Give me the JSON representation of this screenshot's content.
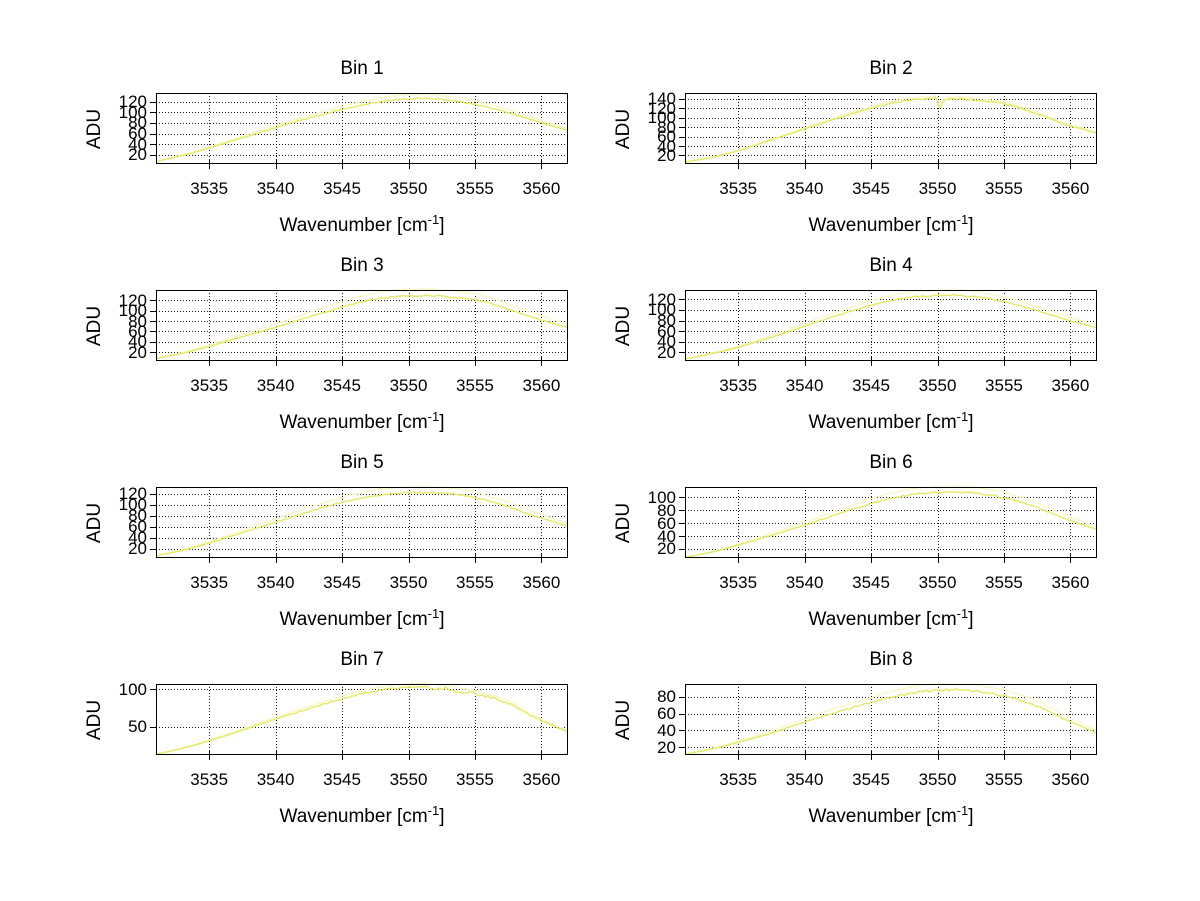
{
  "figure": {
    "background": "#ffffff",
    "text_color": "#000000"
  },
  "labels": {
    "ylabel": "ADU",
    "xlabel_base": "Wavenumber [cm",
    "xlabel_sup": "-1",
    "xlabel_close": "]"
  },
  "colors": {
    "curve": "#e4e95f",
    "ghost_curve": "#f6f8c6",
    "grid": "#1a1a1a",
    "axis": "#000000"
  },
  "chart_data": [
    {
      "type": "line",
      "title": "Bin 1",
      "xlabel": "Wavenumber [cm^-1]",
      "ylabel": "ADU",
      "grid": true,
      "xlim": [
        3531,
        3562
      ],
      "ylim": [
        3,
        136
      ],
      "xticks": [
        3535,
        3540,
        3545,
        3550,
        3555,
        3560
      ],
      "yticks": [
        20,
        40,
        60,
        80,
        100,
        120
      ],
      "x": [
        3531,
        3533,
        3535,
        3537.5,
        3540,
        3542.5,
        3545,
        3546.5,
        3548,
        3549.5,
        3551,
        3552.5,
        3554,
        3555.5,
        3557.5,
        3559.5,
        3562
      ],
      "y": [
        8,
        19,
        33,
        52,
        71,
        89,
        105,
        113,
        120,
        124,
        126,
        124,
        119,
        112,
        99,
        84,
        66
      ],
      "noise_amp": 1.3,
      "ghost_scale": 1.06
    },
    {
      "type": "line",
      "title": "Bin 2",
      "xlabel": "Wavenumber [cm^-1]",
      "ylabel": "ADU",
      "grid": true,
      "xlim": [
        3531,
        3562
      ],
      "ylim": [
        2,
        152
      ],
      "xticks": [
        3535,
        3540,
        3545,
        3550,
        3555,
        3560
      ],
      "yticks": [
        20,
        40,
        60,
        80,
        100,
        120,
        140
      ],
      "x": [
        3531,
        3533,
        3535,
        3537.5,
        3540,
        3542.5,
        3545,
        3546.5,
        3548,
        3549.4,
        3549.9,
        3550.15,
        3550.6,
        3551.5,
        3552.5,
        3554,
        3555.5,
        3557.5,
        3559.5,
        3562
      ],
      "y": [
        6,
        16,
        30,
        53,
        76,
        99,
        120,
        130,
        137,
        140,
        141,
        121,
        138,
        140,
        138,
        133,
        126,
        108,
        87,
        67
      ],
      "noise_amp": 1.5,
      "ghost_scale": 1.03
    },
    {
      "type": "line",
      "title": "Bin 3",
      "xlabel": "Wavenumber [cm^-1]",
      "ylabel": "ADU",
      "grid": true,
      "xlim": [
        3531,
        3562
      ],
      "ylim": [
        3,
        140
      ],
      "xticks": [
        3535,
        3540,
        3545,
        3550,
        3555,
        3560
      ],
      "yticks": [
        20,
        40,
        60,
        80,
        100,
        120
      ],
      "x": [
        3531,
        3533,
        3535,
        3537.5,
        3540,
        3542.5,
        3545,
        3546.5,
        3548,
        3549.5,
        3551,
        3552.5,
        3554,
        3555.5,
        3557.5,
        3559.5,
        3562
      ],
      "y": [
        8,
        18,
        31,
        50,
        68,
        88,
        107,
        117,
        124,
        128,
        129,
        128,
        124,
        119,
        103,
        86,
        67
      ],
      "noise_amp": 1.6,
      "ghost_scale": 1.1
    },
    {
      "type": "line",
      "title": "Bin 4",
      "xlabel": "Wavenumber [cm^-1]",
      "ylabel": "ADU",
      "grid": true,
      "xlim": [
        3531,
        3562
      ],
      "ylim": [
        3,
        138
      ],
      "xticks": [
        3535,
        3540,
        3545,
        3550,
        3555,
        3560
      ],
      "yticks": [
        20,
        40,
        60,
        80,
        100,
        120
      ],
      "x": [
        3531,
        3533,
        3535,
        3537.5,
        3540,
        3542.5,
        3545,
        3546.5,
        3548,
        3549.5,
        3551,
        3552.5,
        3554,
        3555.5,
        3557.5,
        3559.5,
        3562
      ],
      "y": [
        7,
        17,
        29,
        48,
        69,
        90,
        109,
        118,
        125,
        127,
        128,
        126,
        121,
        113,
        99,
        83,
        66
      ],
      "noise_amp": 1.4,
      "ghost_scale": 1.08
    },
    {
      "type": "line",
      "title": "Bin 5",
      "xlabel": "Wavenumber [cm^-1]",
      "ylabel": "ADU",
      "grid": true,
      "xlim": [
        3531,
        3562
      ],
      "ylim": [
        3,
        132
      ],
      "xticks": [
        3535,
        3540,
        3545,
        3550,
        3555,
        3560
      ],
      "yticks": [
        20,
        40,
        60,
        80,
        100,
        120
      ],
      "x": [
        3531,
        3533,
        3535,
        3537.5,
        3540,
        3542.5,
        3545,
        3546.5,
        3548,
        3549.5,
        3551,
        3552.5,
        3554,
        3555.5,
        3557.5,
        3559.5,
        3562
      ],
      "y": [
        7,
        17,
        30,
        49,
        68,
        87,
        104,
        112,
        118,
        121,
        122,
        121,
        117,
        110,
        96,
        79,
        61
      ],
      "noise_amp": 1.4,
      "ghost_scale": 1.09
    },
    {
      "type": "line",
      "title": "Bin 6",
      "xlabel": "Wavenumber [cm^-1]",
      "ylabel": "ADU",
      "grid": true,
      "xlim": [
        3531,
        3562
      ],
      "ylim": [
        6,
        116
      ],
      "xticks": [
        3535,
        3540,
        3545,
        3550,
        3555,
        3560
      ],
      "yticks": [
        20,
        40,
        60,
        80,
        100
      ],
      "x": [
        3531,
        3533,
        3535,
        3537.5,
        3540,
        3542.5,
        3545,
        3546.5,
        3548,
        3549.5,
        3551,
        3552.5,
        3554,
        3555.5,
        3557.5,
        3559.5,
        3562
      ],
      "y": [
        7,
        15,
        26,
        41,
        57,
        74,
        90,
        98,
        104,
        107,
        108,
        107,
        103,
        97,
        84,
        68,
        50
      ],
      "noise_amp": 1.5,
      "ghost_scale": 1.09
    },
    {
      "type": "line",
      "title": "Bin 7",
      "xlabel": "Wavenumber [cm^-1]",
      "ylabel": "ADU",
      "grid": true,
      "xlim": [
        3531,
        3562
      ],
      "ylim": [
        12,
        107
      ],
      "xticks": [
        3535,
        3540,
        3545,
        3550,
        3555,
        3560
      ],
      "yticks": [
        50,
        100
      ],
      "x": [
        3531,
        3533,
        3535,
        3537.5,
        3540,
        3542.5,
        3545,
        3546.5,
        3548,
        3549.5,
        3551,
        3552.5,
        3554,
        3555.5,
        3557.5,
        3559.5,
        3562
      ],
      "y": [
        13,
        21,
        31,
        45,
        60,
        74,
        87,
        94,
        99,
        102,
        103,
        101,
        97,
        92,
        81,
        62,
        43
      ],
      "noise_amp": 1.2,
      "noise_right": 2.6,
      "ghost_scale": 1.05
    },
    {
      "type": "line",
      "title": "Bin 8",
      "xlabel": "Wavenumber [cm^-1]",
      "ylabel": "ADU",
      "grid": true,
      "xlim": [
        3531,
        3562
      ],
      "ylim": [
        11,
        95
      ],
      "xticks": [
        3535,
        3540,
        3545,
        3550,
        3555,
        3560
      ],
      "yticks": [
        20,
        40,
        60,
        80
      ],
      "x": [
        3531,
        3533,
        3535,
        3537.5,
        3540,
        3542.5,
        3545,
        3546.5,
        3548,
        3549.5,
        3551,
        3552.5,
        3554,
        3555.5,
        3557.5,
        3559.5,
        3562
      ],
      "y": [
        12,
        18,
        26,
        37,
        50,
        62,
        73,
        79,
        84,
        87,
        88,
        87,
        84,
        79,
        69,
        54,
        37
      ],
      "noise_amp": 1.6,
      "ghost_scale": 1.1
    }
  ]
}
